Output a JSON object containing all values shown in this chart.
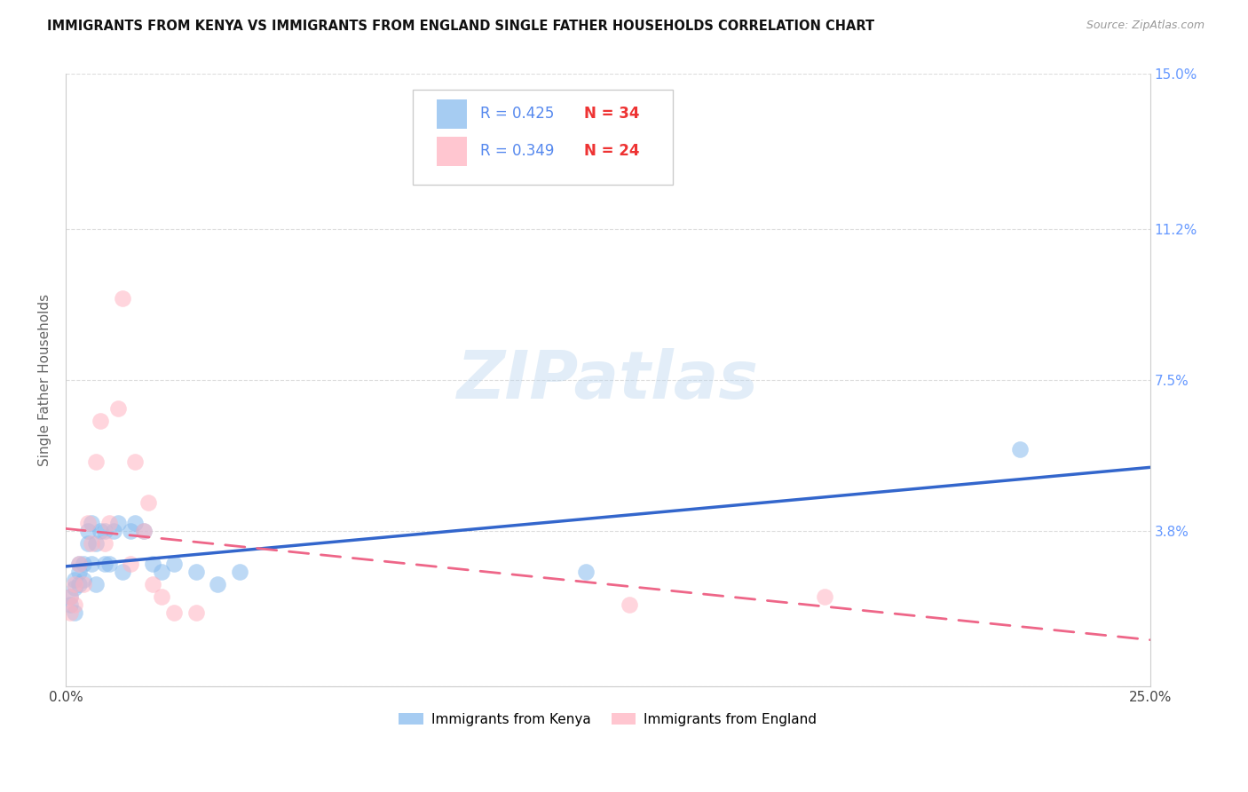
{
  "title": "IMMIGRANTS FROM KENYA VS IMMIGRANTS FROM ENGLAND SINGLE FATHER HOUSEHOLDS CORRELATION CHART",
  "source": "Source: ZipAtlas.com",
  "ylabel": "Single Father Households",
  "x_min": 0.0,
  "x_max": 0.25,
  "y_min": 0.0,
  "y_max": 0.15,
  "x_tick_positions": [
    0.0,
    0.05,
    0.1,
    0.15,
    0.2,
    0.25
  ],
  "x_tick_labels": [
    "0.0%",
    "",
    "",
    "",
    "",
    "25.0%"
  ],
  "y_tick_positions": [
    0.0,
    0.038,
    0.075,
    0.112,
    0.15
  ],
  "y_tick_labels": [
    "",
    "3.8%",
    "7.5%",
    "11.2%",
    "15.0%"
  ],
  "kenya_color": "#88BBEE",
  "england_color": "#FFB3C1",
  "kenya_R": 0.425,
  "kenya_N": 34,
  "england_R": 0.349,
  "england_N": 24,
  "kenya_line_color": "#3366CC",
  "england_line_color": "#EE6688",
  "watermark": "ZIPatlas",
  "kenya_scatter_x": [
    0.001,
    0.001,
    0.002,
    0.002,
    0.002,
    0.003,
    0.003,
    0.003,
    0.004,
    0.004,
    0.005,
    0.005,
    0.006,
    0.006,
    0.007,
    0.007,
    0.008,
    0.009,
    0.009,
    0.01,
    0.011,
    0.012,
    0.013,
    0.015,
    0.016,
    0.018,
    0.02,
    0.022,
    0.025,
    0.03,
    0.035,
    0.04,
    0.12,
    0.22
  ],
  "kenya_scatter_y": [
    0.02,
    0.022,
    0.018,
    0.024,
    0.026,
    0.025,
    0.028,
    0.03,
    0.03,
    0.026,
    0.035,
    0.038,
    0.03,
    0.04,
    0.025,
    0.035,
    0.038,
    0.03,
    0.038,
    0.03,
    0.038,
    0.04,
    0.028,
    0.038,
    0.04,
    0.038,
    0.03,
    0.028,
    0.03,
    0.028,
    0.025,
    0.028,
    0.028,
    0.058
  ],
  "england_scatter_x": [
    0.001,
    0.001,
    0.002,
    0.002,
    0.003,
    0.004,
    0.005,
    0.006,
    0.007,
    0.008,
    0.009,
    0.01,
    0.012,
    0.013,
    0.015,
    0.016,
    0.018,
    0.019,
    0.02,
    0.022,
    0.025,
    0.03,
    0.13,
    0.175
  ],
  "england_scatter_y": [
    0.018,
    0.022,
    0.02,
    0.025,
    0.03,
    0.025,
    0.04,
    0.035,
    0.055,
    0.065,
    0.035,
    0.04,
    0.068,
    0.095,
    0.03,
    0.055,
    0.038,
    0.045,
    0.025,
    0.022,
    0.018,
    0.018,
    0.02,
    0.022
  ],
  "background_color": "#FFFFFF",
  "grid_color": "#DDDDDD"
}
